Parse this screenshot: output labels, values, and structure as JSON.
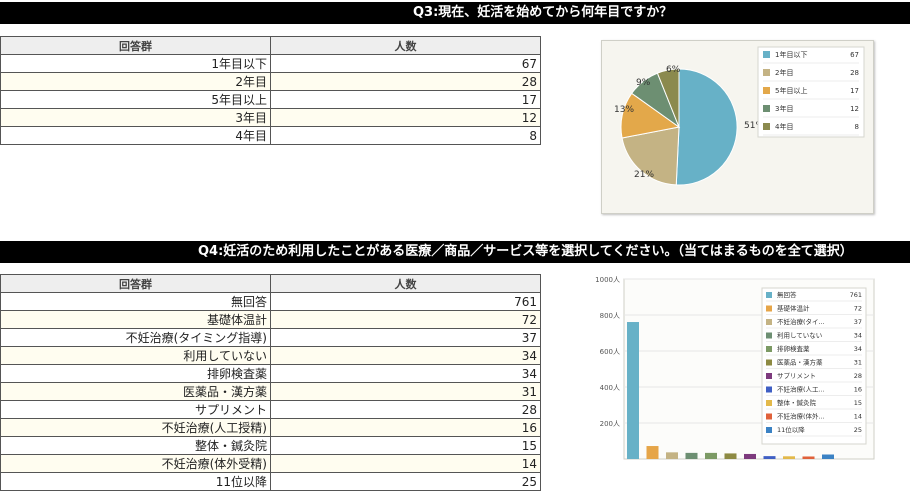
{
  "q3": {
    "title": "Q3:現在、妊活を始めてから何年目ですか？",
    "col_group": "回答群",
    "col_count": "人数",
    "rows": [
      {
        "label": "1年目以下",
        "value": "67"
      },
      {
        "label": "2年目",
        "value": "28"
      },
      {
        "label": "5年目以上",
        "value": "17"
      },
      {
        "label": "3年目",
        "value": "12"
      },
      {
        "label": "4年目",
        "value": "8"
      }
    ]
  },
  "q4": {
    "title": "Q4:妊活のため利用したことがある医療／商品／サービス等を選択してください。（当てはまるものを全て選択）",
    "col_group": "回答群",
    "col_count": "人数",
    "rows": [
      {
        "label": "無回答",
        "value": "761"
      },
      {
        "label": "基礎体温計",
        "value": "72"
      },
      {
        "label": "不妊治療(タイミング指導)",
        "value": "37"
      },
      {
        "label": "利用していない",
        "value": "34"
      },
      {
        "label": "排卵検査薬",
        "value": "34"
      },
      {
        "label": "医薬品・漢方薬",
        "value": "31"
      },
      {
        "label": "サプリメント",
        "value": "28"
      },
      {
        "label": "不妊治療(人工授精)",
        "value": "16"
      },
      {
        "label": "整体・鍼灸院",
        "value": "15"
      },
      {
        "label": "不妊治療(体外受精)",
        "value": "14"
      },
      {
        "label": "11位以降",
        "value": "25"
      }
    ]
  },
  "chart_data": [
    {
      "type": "pie",
      "categories": [
        "1年目以下",
        "2年目",
        "5年目以上",
        "3年目",
        "4年目"
      ],
      "values": [
        67,
        28,
        17,
        12,
        8
      ],
      "slice_labels": [
        "51%",
        "21%",
        "13%",
        "9%",
        "6%"
      ],
      "colors": [
        "#67b1c7",
        "#c4b384",
        "#e3a84a",
        "#6d8f72",
        "#8b8a4e"
      ],
      "legend_position": "right"
    },
    {
      "type": "bar",
      "categories": [
        "無回答",
        "基礎体温計",
        "不妊治療(タイ...",
        "利用していない",
        "排卵検査薬",
        "医薬品・漢方薬",
        "サプリメント",
        "不妊治療(人工...",
        "整体・鍼灸院",
        "不妊治療(体外...",
        "11位以降"
      ],
      "values": [
        761,
        72,
        37,
        34,
        34,
        31,
        28,
        16,
        15,
        14,
        25
      ],
      "colors": [
        "#67b1c7",
        "#e6a548",
        "#c4b384",
        "#6d8f72",
        "#7c9a64",
        "#8d8a42",
        "#7d3a7d",
        "#3f5fc4",
        "#e3b94a",
        "#e0613a",
        "#3b82c4"
      ],
      "y_tick_labels": [
        "1000人",
        "800人",
        "600人",
        "400人",
        "200人"
      ],
      "ylim": [
        0,
        1000
      ],
      "grid": true,
      "legend_position": "right"
    }
  ]
}
